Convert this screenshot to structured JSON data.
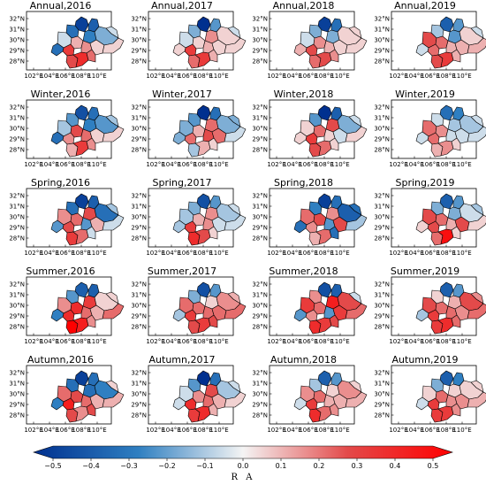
{
  "panels": [
    {
      "title": "Annual,2016",
      "values": [
        -0.45,
        -0.35,
        -0.3,
        -0.05,
        0.1,
        -0.25,
        0.15,
        -0.15,
        0.3,
        -0.3,
        0.05,
        0.25,
        0.35,
        0.2,
        0.05,
        -0.05
      ]
    },
    {
      "title": "Annual,2017",
      "values": [
        -0.5,
        -0.2,
        -0.15,
        -0.05,
        0.05,
        0.15,
        0.1,
        0.05,
        0.3,
        0.05,
        0.05,
        0.2,
        0.3,
        0.1,
        0.05,
        -0.05
      ]
    },
    {
      "title": "Annual,2018",
      "values": [
        -0.45,
        -0.3,
        -0.15,
        -0.05,
        0.15,
        -0.15,
        0.1,
        0.05,
        0.25,
        0.1,
        0.05,
        0.2,
        0.25,
        0.15,
        0.05,
        0.05
      ]
    },
    {
      "title": "Annual,2019",
      "values": [
        -0.35,
        -0.2,
        -0.1,
        0.25,
        0.2,
        -0.2,
        0.1,
        0.05,
        0.2,
        -0.05,
        0.1,
        0.25,
        0.3,
        0.1,
        0.1,
        -0.05
      ]
    },
    {
      "title": "Winter,2016",
      "values": [
        -0.4,
        -0.3,
        -0.2,
        -0.1,
        0.25,
        -0.25,
        0.2,
        -0.2,
        0.15,
        -0.3,
        0.05,
        0.1,
        0.3,
        0.15,
        0.05,
        -0.1
      ]
    },
    {
      "title": "Winter,2017",
      "values": [
        -0.55,
        -0.3,
        -0.2,
        -0.15,
        0.1,
        0.2,
        0.25,
        -0.15,
        0.2,
        -0.15,
        0.2,
        -0.1,
        0.1,
        0.05,
        -0.05,
        -0.15
      ]
    },
    {
      "title": "Winter,2018",
      "values": [
        -0.5,
        -0.35,
        -0.2,
        0.05,
        0.2,
        0.25,
        0.05,
        -0.15,
        0.3,
        0.05,
        -0.05,
        0.25,
        0.2,
        0.05,
        0.05,
        -0.05
      ]
    },
    {
      "title": "Winter,2019",
      "values": [
        -0.3,
        -0.25,
        -0.05,
        0.2,
        0.15,
        -0.1,
        -0.05,
        -0.1,
        0.2,
        -0.05,
        -0.05,
        0.1,
        0.15,
        0.05,
        -0.05,
        -0.05
      ]
    },
    {
      "title": "Spring,2016",
      "values": [
        -0.45,
        -0.35,
        -0.3,
        0.15,
        0.2,
        0.25,
        -0.2,
        -0.3,
        0.25,
        -0.2,
        0.1,
        0.3,
        0.2,
        -0.05,
        -0.05,
        -0.1
      ]
    },
    {
      "title": "Spring,2017",
      "values": [
        -0.4,
        -0.2,
        -0.15,
        -0.1,
        0.1,
        0.15,
        0.15,
        -0.1,
        0.3,
        -0.1,
        -0.05,
        0.35,
        0.25,
        0.05,
        -0.05,
        -0.05
      ]
    },
    {
      "title": "Spring,2018",
      "values": [
        -0.45,
        -0.3,
        -0.25,
        0.2,
        0.25,
        0.15,
        -0.2,
        -0.35,
        0.15,
        -0.3,
        0.25,
        0.1,
        0.2,
        -0.3,
        -0.1,
        -0.3
      ]
    },
    {
      "title": "Spring,2019",
      "values": [
        -0.35,
        -0.2,
        -0.15,
        0.25,
        0.2,
        -0.15,
        0.1,
        -0.05,
        0.25,
        0.05,
        0.25,
        0.2,
        0.45,
        0.05,
        0.05,
        -0.1
      ]
    },
    {
      "title": "Summer,2016",
      "values": [
        -0.35,
        -0.35,
        -0.2,
        0.15,
        0.35,
        0.3,
        0.2,
        0.05,
        0.35,
        -0.25,
        0.1,
        0.5,
        0.4,
        0.15,
        0.2,
        0.05
      ]
    },
    {
      "title": "Summer,2017",
      "values": [
        -0.4,
        -0.2,
        -0.15,
        0.2,
        0.2,
        0.05,
        0.2,
        0.15,
        0.3,
        -0.1,
        0.2,
        0.25,
        0.3,
        0.25,
        0.2,
        0.1
      ]
    },
    {
      "title": "Summer,2018",
      "values": [
        -0.4,
        -0.35,
        0.15,
        0.3,
        0.2,
        0.4,
        -0.2,
        0.25,
        0.15,
        -0.2,
        0.3,
        0.35,
        0.3,
        0.25,
        0.2,
        -0.05
      ]
    },
    {
      "title": "Summer,2019",
      "values": [
        -0.35,
        -0.2,
        0.05,
        0.25,
        0.2,
        0.1,
        0.2,
        0.25,
        0.3,
        -0.1,
        0.15,
        0.3,
        0.35,
        0.2,
        0.2,
        0.15
      ]
    },
    {
      "title": "Autumn,2016",
      "values": [
        -0.45,
        -0.3,
        -0.3,
        0.2,
        0.25,
        -0.3,
        0.2,
        -0.25,
        0.4,
        -0.25,
        0.1,
        0.25,
        0.15,
        0.25,
        0.1,
        0.05
      ]
    },
    {
      "title": "Autumn,2017",
      "values": [
        -0.5,
        -0.3,
        -0.2,
        -0.05,
        0.15,
        0.25,
        0.2,
        -0.1,
        0.35,
        -0.05,
        0.1,
        0.3,
        0.35,
        0.1,
        0.05,
        -0.05
      ]
    },
    {
      "title": "Autumn,2018",
      "values": [
        -0.35,
        -0.2,
        -0.1,
        0.15,
        0.2,
        0.05,
        0.1,
        0.15,
        0.3,
        -0.05,
        0.1,
        0.35,
        0.2,
        0.15,
        0.1,
        0.05
      ]
    },
    {
      "title": "Autumn,2019",
      "values": [
        -0.35,
        -0.25,
        -0.15,
        0.05,
        0.2,
        0.05,
        0.15,
        0.05,
        0.3,
        -0.05,
        0.15,
        0.3,
        0.3,
        0.15,
        0.1,
        0.05
      ]
    }
  ],
  "lat_ticks": [
    "32°N",
    "31°N",
    "30°N",
    "29°N",
    "28°N"
  ],
  "lon_ticks": [
    "102°E",
    "104°E",
    "106°E",
    "108°E",
    "110°E"
  ],
  "colorbar": {
    "label": "R A",
    "min": -0.5,
    "max": 0.5,
    "ticks": [
      "−0.5",
      "−0.4",
      "−0.3",
      "−0.2",
      "−0.1",
      "0.0",
      "0.1",
      "0.2",
      "0.3",
      "0.4",
      "0.5"
    ],
    "colors": [
      "#00308f",
      "#2f7fc1",
      "#f4f4f4",
      "#e34a4a",
      "#ff0000"
    ]
  }
}
